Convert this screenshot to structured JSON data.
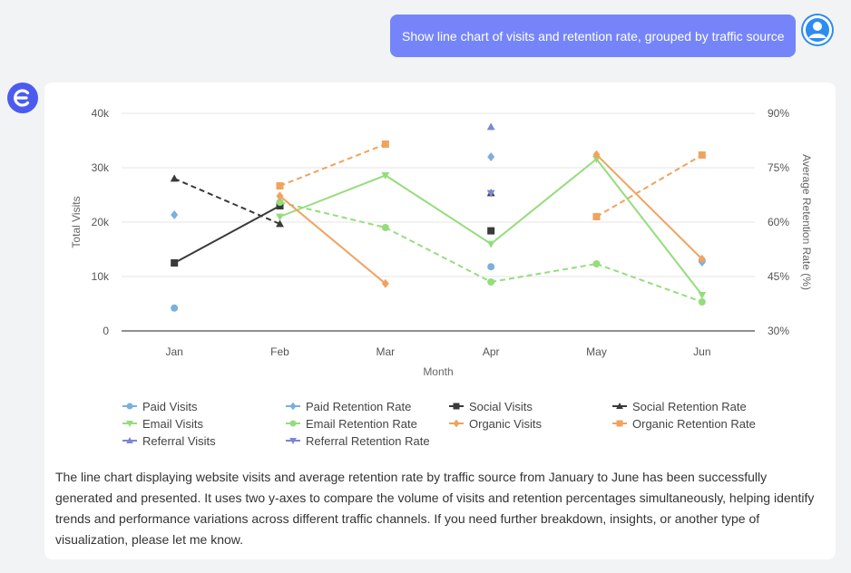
{
  "user_message": "Show line chart of visits and retention rate, grouped by traffic source",
  "summary": "The line chart displaying website visits and average retention rate by traffic source from January to June has been successfully generated and presented. It uses two y-axes to compare the volume of visits and retention percentages simultaneously, helping identify trends and performance variations across different traffic channels. If you need further breakdown, insights, or another type of visualization, please let me know.",
  "colors": {
    "bubble": "#7585f9",
    "logo": "#4b5bf0",
    "avatar": "#2d8cf0"
  },
  "chart_data": {
    "type": "line",
    "xlabel": "Month",
    "ylabel": "Total Visits",
    "y2label": "Average Retention Rate (%)",
    "categories": [
      "Jan",
      "Feb",
      "Mar",
      "Apr",
      "May",
      "Jun"
    ],
    "ylim": [
      0,
      40000
    ],
    "yticks": [
      "0",
      "10k",
      "20k",
      "30k",
      "40k"
    ],
    "y2lim": [
      30,
      90
    ],
    "y2ticks": [
      "30%",
      "45%",
      "60%",
      "75%",
      "90%"
    ],
    "grid": true,
    "legend_position": "bottom",
    "series": [
      {
        "name": "Paid Visits",
        "axis": "left",
        "color": "#7aafe0",
        "marker": "circle",
        "dash": false,
        "values": [
          4200,
          null,
          null,
          11800,
          null,
          12900
        ]
      },
      {
        "name": "Paid Retention Rate",
        "axis": "right",
        "color": "#7aafe0",
        "marker": "diamond",
        "dash": true,
        "values": [
          62,
          null,
          null,
          78,
          null,
          49
        ]
      },
      {
        "name": "Social Visits",
        "axis": "left",
        "color": "#3a3a3a",
        "marker": "square",
        "dash": false,
        "values": [
          12500,
          23000,
          null,
          18400,
          null,
          null
        ]
      },
      {
        "name": "Social Retention Rate",
        "axis": "right",
        "color": "#3a3a3a",
        "marker": "triangle",
        "dash": true,
        "values": [
          72,
          59.5,
          null,
          68,
          null,
          null
        ]
      },
      {
        "name": "Email Visits",
        "axis": "left",
        "color": "#95dd7c",
        "marker": "triangle-down",
        "dash": false,
        "values": [
          null,
          21000,
          28600,
          16000,
          31600,
          6600
        ]
      },
      {
        "name": "Email Retention Rate",
        "axis": "right",
        "color": "#95dd7c",
        "marker": "circle",
        "dash": true,
        "values": [
          null,
          65.5,
          58.5,
          43.5,
          48.5,
          38
        ]
      },
      {
        "name": "Organic Visits",
        "axis": "left",
        "color": "#f0a35e",
        "marker": "diamond",
        "dash": false,
        "values": [
          null,
          24800,
          8700,
          null,
          32400,
          13200
        ]
      },
      {
        "name": "Organic Retention Rate",
        "axis": "right",
        "color": "#f0a35e",
        "marker": "square",
        "dash": true,
        "values": [
          null,
          70,
          81.5,
          null,
          61.5,
          78.5
        ]
      },
      {
        "name": "Referral Visits",
        "axis": "left",
        "color": "#7b86d6",
        "marker": "triangle",
        "dash": false,
        "values": [
          null,
          null,
          null,
          37500,
          null,
          null
        ]
      },
      {
        "name": "Referral Retention Rate",
        "axis": "right",
        "color": "#7b86d6",
        "marker": "triangle-down",
        "dash": true,
        "values": [
          null,
          null,
          null,
          68,
          null,
          null
        ]
      }
    ]
  }
}
